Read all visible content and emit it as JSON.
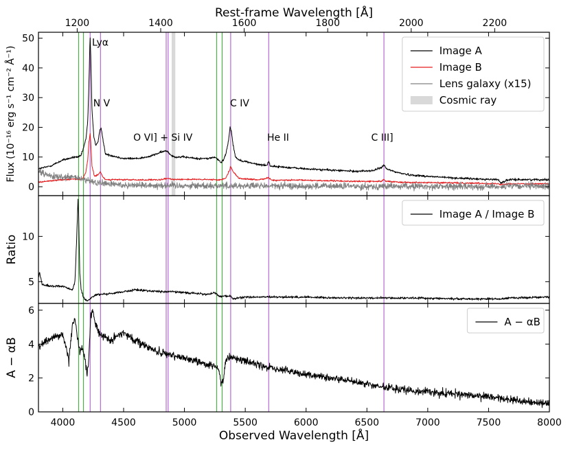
{
  "chart_data": {
    "type": "line",
    "top_axis": {
      "label": "Rest-frame Wavelength [Å]",
      "ticks": [
        1200,
        1400,
        1600,
        1800,
        2000,
        2200
      ],
      "redshift_factor": 3.432
    },
    "x": {
      "label": "Observed Wavelength [Å]",
      "range": [
        3800,
        8000
      ],
      "ticks": [
        4000,
        4500,
        5000,
        5500,
        6000,
        6500,
        7000,
        7500,
        8000
      ]
    },
    "emission_line_markers": [
      {
        "wavelength": 4225,
        "label": "Lyα",
        "label_at": [
          4240,
          47.5
        ]
      },
      {
        "wavelength": 4310,
        "label": "N V",
        "label_at": [
          4250,
          27
        ]
      },
      {
        "wavelength": 4850,
        "label": "",
        "label_at": null
      },
      {
        "wavelength": 4866,
        "label": "O VI] + Si IV",
        "label_at": [
          4580,
          15.5
        ]
      },
      {
        "wavelength": 5380,
        "label": "C IV",
        "label_at": [
          5375,
          27
        ]
      },
      {
        "wavelength": 5693,
        "label": "He II",
        "label_at": [
          5680,
          15.5
        ]
      },
      {
        "wavelength": 6640,
        "label": "C III]",
        "label_at": [
          6535,
          15.5
        ]
      }
    ],
    "absorption_markers": [
      4130,
      4170,
      5265,
      5310
    ],
    "cosmic_ray_band": [
      4895,
      4925
    ],
    "colors": {
      "image_a": "#000000",
      "image_b": "#e41a1c",
      "lens_galaxy": "#808080",
      "cosmic_ray": "#d9d9d9",
      "emission_marker": "#b66ad4",
      "absorption_marker": "#4daf4a"
    },
    "panels": [
      {
        "id": "flux",
        "ylabel": "Flux (10⁻¹⁶ erg s⁻¹ cm⁻² Å⁻¹)",
        "ylim": [
          -3,
          52
        ],
        "yticks": [
          0,
          10,
          20,
          30,
          40,
          50
        ],
        "legend": {
          "placement": "top-right",
          "entries": [
            {
              "label": "Image A",
              "style": "line",
              "color": "#000000"
            },
            {
              "label": "Image B",
              "style": "line",
              "color": "#e41a1c"
            },
            {
              "label": "Lens galaxy (x15)",
              "style": "line",
              "color": "#808080"
            },
            {
              "label": "Cosmic ray",
              "style": "patch",
              "color": "#d9d9d9"
            }
          ]
        },
        "series": [
          {
            "name": "Image A",
            "color": "#000000",
            "noise": 0.35,
            "x": [
              3800,
              3900,
              4000,
              4050,
              4100,
              4130,
              4150,
              4170,
              4190,
              4205,
              4215,
              4222,
              4225,
              4230,
              4240,
              4255,
              4270,
              4290,
              4305,
              4315,
              4330,
              4350,
              4400,
              4500,
              4600,
              4700,
              4800,
              4840,
              4860,
              4880,
              4920,
              5000,
              5100,
              5200,
              5250,
              5280,
              5300,
              5320,
              5340,
              5360,
              5375,
              5385,
              5400,
              5420,
              5450,
              5500,
              5600,
              5680,
              5693,
              5705,
              5750,
              5850,
              6000,
              6200,
              6400,
              6550,
              6620,
              6640,
              6660,
              6750,
              6850,
              7000,
              7200,
              7400,
              7580,
              7600,
              7620,
              7650,
              7700,
              8000
            ],
            "y": [
              6,
              7,
              9,
              9.5,
              10,
              10,
              10.5,
              13,
              16,
              22,
              35,
              47,
              50,
              44,
              26,
              17,
              14,
              15,
              19,
              20,
              16,
              11,
              10.5,
              9.5,
              9.5,
              10,
              11.5,
              12,
              12,
              11,
              10,
              10,
              9.5,
              9.5,
              10,
              9,
              8,
              9,
              11,
              15,
              20,
              19,
              14,
              10,
              9,
              8.5,
              7.5,
              7.2,
              8.8,
              7,
              6.8,
              6.5,
              6,
              5.6,
              5.2,
              5.4,
              6.5,
              7.3,
              6,
              4.8,
              4,
              3.5,
              3,
              2.6,
              2.4,
              1.3,
              1.6,
              2.2,
              2.4,
              2.4
            ]
          },
          {
            "name": "Image B",
            "color": "#e41a1c",
            "noise": 0.25,
            "x": [
              3800,
              3900,
              4000,
              4100,
              4150,
              4170,
              4190,
              4205,
              4215,
              4222,
              4225,
              4230,
              4240,
              4260,
              4290,
              4310,
              4325,
              4350,
              4400,
              4600,
              4800,
              4860,
              4900,
              5000,
              5200,
              5300,
              5340,
              5370,
              5380,
              5400,
              5450,
              5600,
              5693,
              5720,
              6000,
              6400,
              6620,
              6640,
              6660,
              6800,
              7000,
              7400,
              7580,
              7600,
              7650,
              8000
            ],
            "y": [
              1.5,
              2,
              2.4,
              2.6,
              2.4,
              3,
              5,
              9,
              15,
              17,
              18,
              15,
              7,
              3.5,
              4,
              5,
              3.6,
              2.4,
              2.4,
              2.3,
              2.3,
              2.8,
              2.5,
              2.5,
              2.4,
              2.3,
              3,
              5.5,
              7,
              5,
              2.8,
              2.3,
              3,
              2.2,
              2.2,
              1.8,
              1.8,
              2.5,
              1.8,
              1.5,
              1.4,
              1.2,
              1,
              0.8,
              1,
              1
            ]
          },
          {
            "name": "Lens galaxy (x15)",
            "color": "#808080",
            "noise": 1.1,
            "x": [
              3800,
              3900,
              4000,
              4100,
              4200,
              4300,
              4500,
              5000,
              6000,
              7000,
              7500,
              8000
            ],
            "y": [
              5,
              3.5,
              3,
              3.2,
              2,
              1.2,
              0.6,
              0.4,
              0.2,
              0.1,
              0.1,
              0.2
            ]
          }
        ]
      },
      {
        "id": "ratio",
        "ylabel": "Ratio",
        "ylim": [
          2.6,
          14.5
        ],
        "yticks": [
          5,
          10
        ],
        "legend": {
          "placement": "top-right",
          "entries": [
            {
              "label": "Image A / Image B",
              "style": "line",
              "color": "#000000"
            }
          ]
        },
        "series": [
          {
            "name": "Image A / Image B",
            "color": "#000000",
            "noise": 0.12,
            "x": [
              3800,
              3810,
              3830,
              3900,
              4000,
              4080,
              4100,
              4115,
              4125,
              4130,
              4140,
              4150,
              4170,
              4200,
              4225,
              4260,
              4300,
              4400,
              4500,
              4600,
              4700,
              4800,
              4900,
              5000,
              5100,
              5200,
              5250,
              5280,
              5330,
              5380,
              5400,
              5500,
              5700,
              6000,
              6300,
              6600,
              6900,
              7300,
              7600,
              7650,
              8000
            ],
            "y": [
              5.5,
              6,
              4.7,
              4.5,
              4.5,
              4.1,
              5,
              10,
              14,
              12.5,
              6,
              4.2,
              3.2,
              2.9,
              3.1,
              3.5,
              3.6,
              3.7,
              3.9,
              4.1,
              4,
              3.9,
              3.9,
              3.8,
              3.7,
              3.6,
              3.8,
              3.4,
              3.4,
              3.4,
              3.1,
              3.3,
              3.3,
              3.3,
              3.2,
              3.2,
              3.2,
              3.1,
              3.1,
              3.2,
              3.3
            ]
          }
        ]
      },
      {
        "id": "difference",
        "ylabel": "A − αB",
        "ylim": [
          0,
          6.4
        ],
        "yticks": [
          0,
          2,
          4,
          6
        ],
        "legend": {
          "placement": "top-right",
          "entries": [
            {
              "label": "A − αB",
              "style": "line",
              "color": "#000000"
            }
          ]
        },
        "series": [
          {
            "name": "A − αB",
            "color": "#000000",
            "noise": 0.22,
            "x": [
              3800,
              3850,
              3900,
              4000,
              4050,
              4080,
              4100,
              4120,
              4140,
              4160,
              4180,
              4200,
              4210,
              4230,
              4245,
              4270,
              4300,
              4350,
              4400,
              4450,
              4500,
              4600,
              4700,
              4800,
              4900,
              5000,
              5100,
              5200,
              5280,
              5300,
              5320,
              5340,
              5370,
              5400,
              5500,
              5700,
              6000,
              6300,
              6600,
              6800,
              7000,
              7300,
              7600,
              7800,
              8000
            ],
            "y": [
              3.8,
              4.2,
              4.3,
              4.6,
              3,
              5.2,
              5.5,
              4.5,
              3.5,
              3.8,
              3.2,
              2.2,
              2.8,
              5.6,
              6,
              5.2,
              4.6,
              4.4,
              4.2,
              4.5,
              4.7,
              4.2,
              3.8,
              3.5,
              3.3,
              3.2,
              3,
              2.8,
              2.6,
              1.6,
              1.8,
              3,
              3.2,
              3.2,
              3,
              2.6,
              2.2,
              1.9,
              1.5,
              1.3,
              1.2,
              1,
              0.8,
              0.6,
              0.5
            ]
          }
        ]
      }
    ]
  }
}
